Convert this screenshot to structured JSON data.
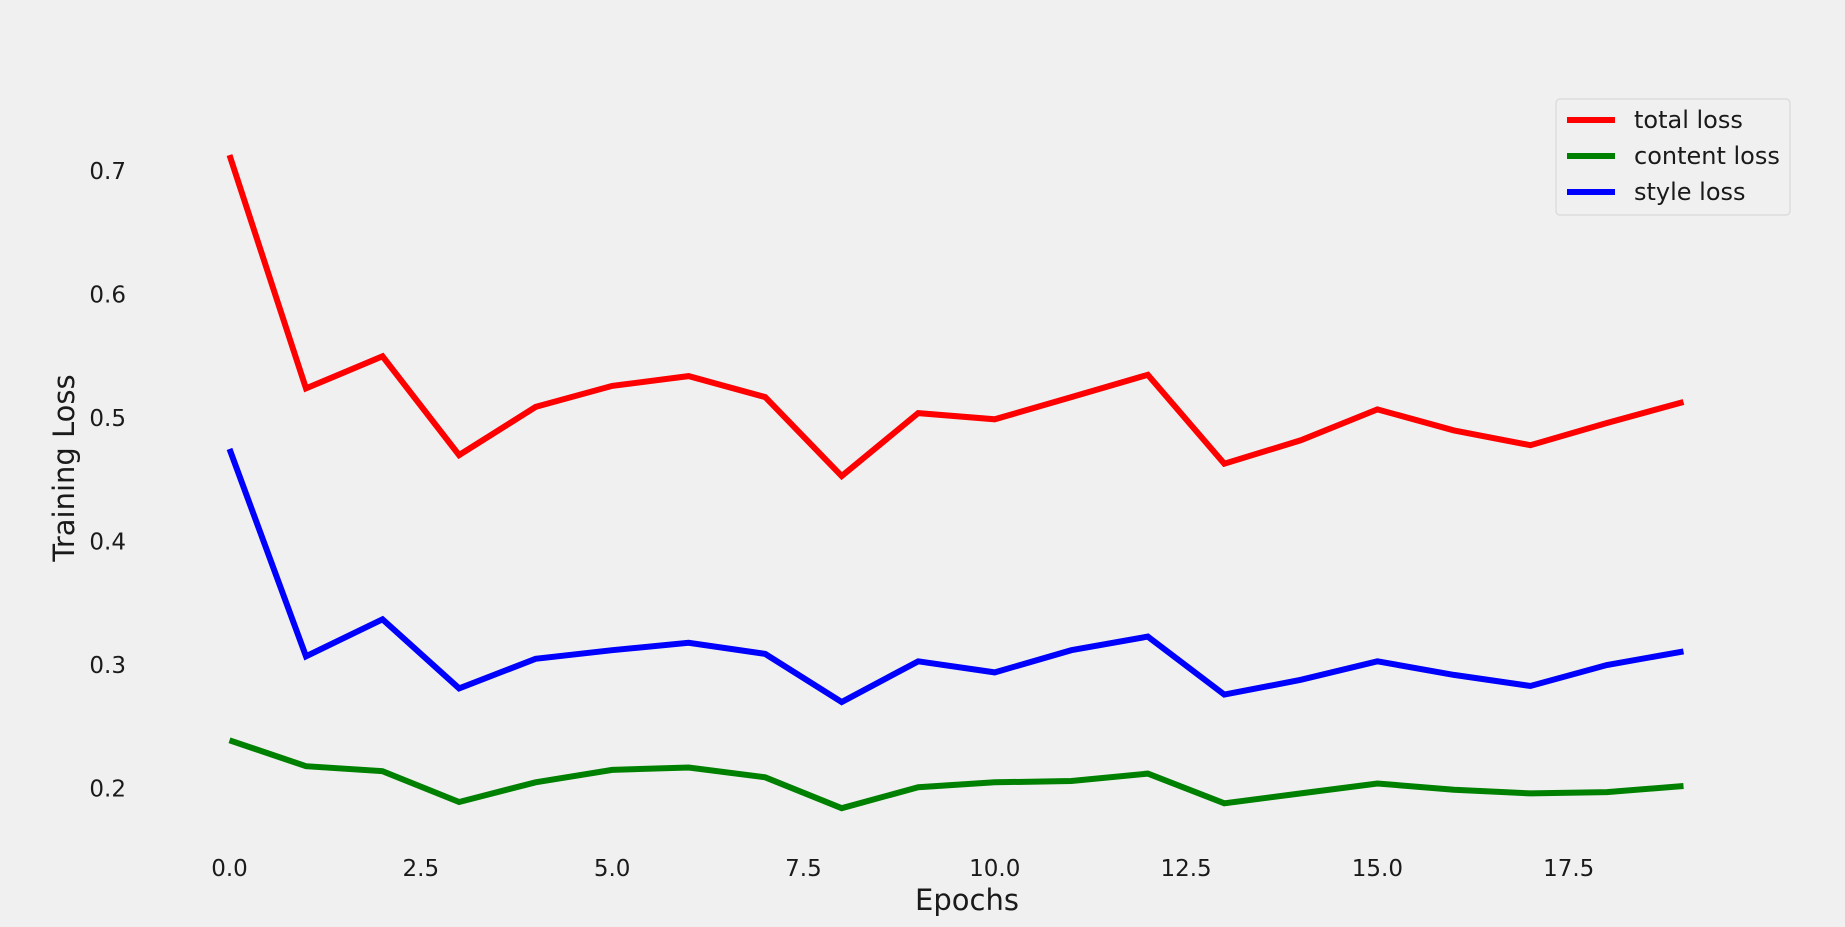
{
  "chart_data": {
    "type": "line",
    "title": "",
    "xlabel": "Epochs",
    "ylabel": "Training Loss",
    "xlim": [
      -1.3,
      20.0
    ],
    "ylim": [
      0.155,
      0.79
    ],
    "x_ticks": [
      0.0,
      2.5,
      5.0,
      7.5,
      10.0,
      12.5,
      15.0,
      17.5
    ],
    "y_ticks": [
      0.2,
      0.3,
      0.4,
      0.5,
      0.6,
      0.7
    ],
    "grid": false,
    "legend_position": "top-right",
    "x": [
      0,
      1,
      2,
      3,
      4,
      5,
      6,
      7,
      8,
      9,
      10,
      11,
      12,
      13,
      14,
      15,
      16,
      17,
      18,
      19
    ],
    "series": [
      {
        "name": "total loss",
        "color": "#ff0000",
        "values": [
          0.713,
          0.524,
          0.55,
          0.47,
          0.509,
          0.526,
          0.534,
          0.517,
          0.453,
          0.504,
          0.499,
          0.517,
          0.535,
          0.463,
          0.482,
          0.507,
          0.49,
          0.478,
          0.496,
          0.513
        ]
      },
      {
        "name": "content loss",
        "color": "#008000",
        "values": [
          0.239,
          0.218,
          0.214,
          0.189,
          0.205,
          0.215,
          0.217,
          0.209,
          0.184,
          0.201,
          0.205,
          0.206,
          0.212,
          0.188,
          0.196,
          0.204,
          0.199,
          0.196,
          0.197,
          0.202
        ]
      },
      {
        "name": "style loss",
        "color": "#0000ff",
        "values": [
          0.475,
          0.307,
          0.337,
          0.281,
          0.305,
          0.312,
          0.318,
          0.309,
          0.27,
          0.303,
          0.294,
          0.312,
          0.323,
          0.276,
          0.288,
          0.303,
          0.292,
          0.283,
          0.3,
          0.311
        ]
      }
    ]
  }
}
